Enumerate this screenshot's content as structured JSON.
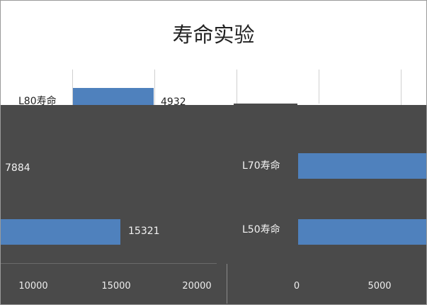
{
  "chart_data": {
    "type": "bar",
    "orientation": "horizontal",
    "title": "寿命实验",
    "categories": [
      "L50寿命",
      "L70寿命",
      "L80寿命"
    ],
    "series": [
      {
        "values": [
          15321,
          7884,
          4932
        ]
      }
    ],
    "value_labels": [
      "15321",
      "7884",
      "4932"
    ],
    "x_tick_labels_left": [
      "10000",
      "15000",
      "20000"
    ],
    "x_tick_labels_right": [
      "0",
      "5000"
    ],
    "grid": true,
    "legend": "none",
    "bar_color": "#4f81bd"
  }
}
